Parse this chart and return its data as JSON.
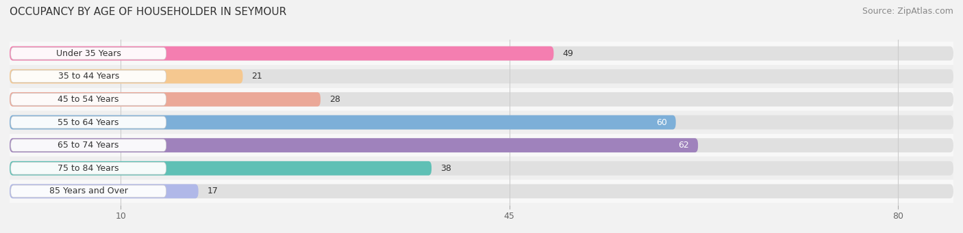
{
  "title": "OCCUPANCY BY AGE OF HOUSEHOLDER IN SEYMOUR",
  "source": "Source: ZipAtlas.com",
  "categories": [
    "Under 35 Years",
    "35 to 44 Years",
    "45 to 54 Years",
    "55 to 64 Years",
    "65 to 74 Years",
    "75 to 84 Years",
    "85 Years and Over"
  ],
  "values": [
    49,
    21,
    28,
    60,
    62,
    38,
    17
  ],
  "bar_colors": [
    "#F47EB0",
    "#F5C890",
    "#EBA898",
    "#7DAFD8",
    "#9F82BC",
    "#5FC0B5",
    "#B0B8E8"
  ],
  "bar_height": 0.62,
  "xlim": [
    0,
    85
  ],
  "xticks": [
    10,
    45,
    80
  ],
  "label_colors": [
    "#444444",
    "#444444",
    "#444444",
    "#ffffff",
    "#ffffff",
    "#444444",
    "#444444"
  ],
  "title_fontsize": 11,
  "source_fontsize": 9,
  "tick_fontsize": 9,
  "label_fontsize": 9,
  "category_fontsize": 9,
  "background_color": "#f2f2f2",
  "bar_bg_color": "#e0e0e0",
  "row_bg_colors": [
    "#f8f8f8",
    "#efefef"
  ]
}
